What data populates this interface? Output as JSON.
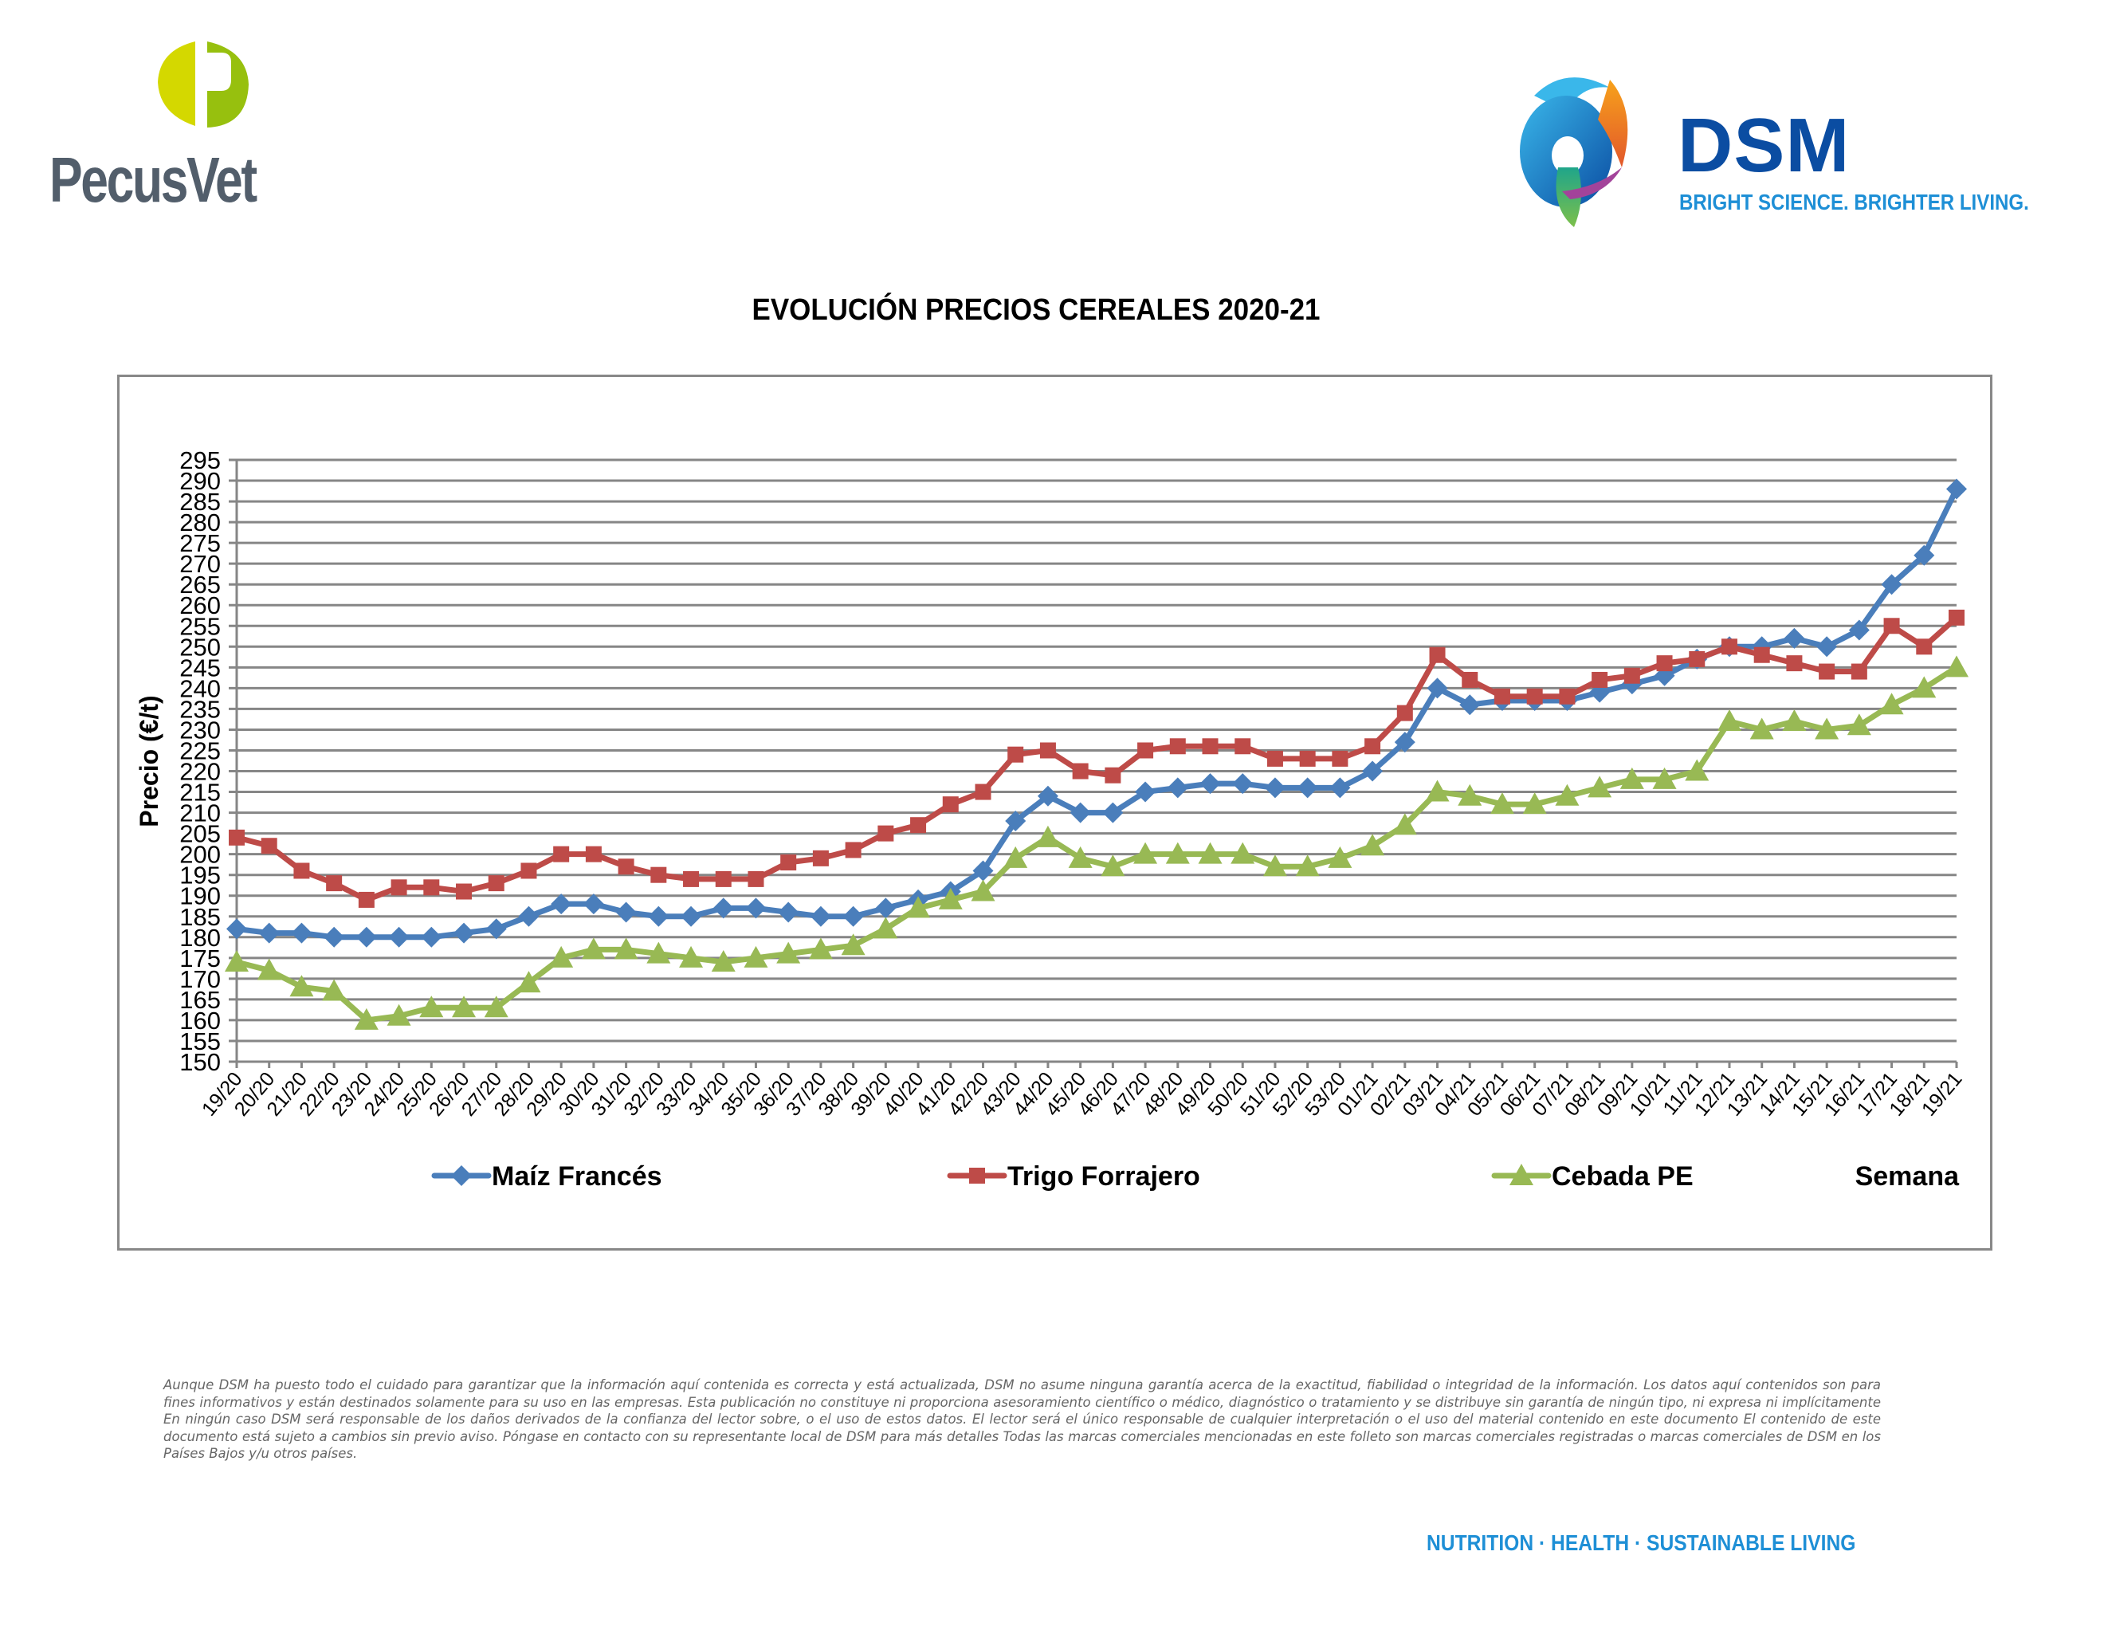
{
  "header": {
    "left_logo": {
      "name": "PecusVet",
      "colors": {
        "left_half": "#d4d800",
        "right_half": "#97c00e",
        "word": "#525e6b"
      }
    },
    "right_logo": {
      "name": "DSM",
      "tagline": "BRIGHT SCIENCE. BRIGHTER LIVING.",
      "colors": {
        "word": "#0b4da2",
        "tagline": "#1e8fd6"
      }
    }
  },
  "footer": {
    "disclaimer": "Aunque DSM ha puesto todo el cuidado para garantizar que la información aquí contenida es correcta y está actualizada, DSM no asume ninguna garantía acerca de la exactitud, fiabilidad o integridad de la información. Los datos aquí contenidos son para fines informativos y están destinados solamente para su uso en las empresas. Esta publicación no constituye ni proporciona asesoramiento científico o médico, diagnóstico o tratamiento y se distribuye sin garantía de ningún tipo, ni expresa ni implícitamente En ningún caso DSM será responsable de los daños derivados de la confianza del lector sobre, o el uso de estos datos. El lector será el único responsable de cualquier interpretación o el uso del material contenido en este documento El contenido de este documento está sujeto a cambios sin previo aviso. Póngase en contacto con su representante local de DSM para más detalles Todas las marcas comerciales mencionadas en este folleto son marcas comerciales registradas o marcas comerciales de DSM en los Países Bajos y/u otros países.",
    "tagline": "NUTRITION  ·  HEALTH  ·  SUSTAINABLE LIVING"
  },
  "chart_data": {
    "type": "line",
    "title": "EVOLUCIÓN PRECIOS CEREALES 2020-21",
    "xlabel": "Semana",
    "ylabel": "Precio (€/t)",
    "ylim": [
      150,
      295
    ],
    "ystep": 5,
    "grid": true,
    "legend_position": "bottom",
    "categories": [
      "19/20",
      "20/20",
      "21/20",
      "22/20",
      "23/20",
      "24/20",
      "25/20",
      "26/20",
      "27/20",
      "28/20",
      "29/20",
      "30/20",
      "31/20",
      "32/20",
      "33/20",
      "34/20",
      "35/20",
      "36/20",
      "37/20",
      "38/20",
      "39/20",
      "40/20",
      "41/20",
      "42/20",
      "43/20",
      "44/20",
      "45/20",
      "46/20",
      "47/20",
      "48/20",
      "49/20",
      "50/20",
      "51/20",
      "52/20",
      "53/20",
      "01/21",
      "02/21",
      "03/21",
      "04/21",
      "05/21",
      "06/21",
      "07/21",
      "08/21",
      "09/21",
      "10/21",
      "11/21",
      "12/21",
      "13/21",
      "14/21",
      "15/21",
      "16/21",
      "17/21",
      "18/21",
      "19/21"
    ],
    "series": [
      {
        "name": "Maíz Francés",
        "color": "#4a7ebb",
        "marker": "diamond",
        "values": [
          182,
          181,
          181,
          180,
          180,
          180,
          180,
          181,
          182,
          185,
          188,
          188,
          186,
          185,
          185,
          187,
          187,
          186,
          185,
          185,
          187,
          189,
          191,
          196,
          208,
          214,
          210,
          210,
          215,
          216,
          217,
          217,
          216,
          216,
          216,
          220,
          227,
          240,
          236,
          237,
          237,
          237,
          239,
          241,
          243,
          247,
          250,
          250,
          252,
          250,
          254,
          265,
          272,
          288
        ]
      },
      {
        "name": "Trigo Forrajero",
        "color": "#be4b48",
        "marker": "square",
        "values": [
          204,
          202,
          196,
          193,
          189,
          192,
          192,
          191,
          193,
          196,
          200,
          200,
          197,
          195,
          194,
          194,
          194,
          198,
          199,
          201,
          205,
          207,
          212,
          215,
          224,
          225,
          220,
          219,
          225,
          226,
          226,
          226,
          223,
          223,
          223,
          226,
          234,
          248,
          242,
          238,
          238,
          238,
          242,
          243,
          246,
          247,
          250,
          248,
          246,
          244,
          244,
          255,
          250,
          257
        ]
      },
      {
        "name": "Cebada PE",
        "color": "#98b954",
        "marker": "triangle",
        "values": [
          174,
          172,
          168,
          167,
          160,
          161,
          163,
          163,
          163,
          169,
          175,
          177,
          177,
          176,
          175,
          174,
          175,
          176,
          177,
          178,
          182,
          187,
          189,
          191,
          199,
          204,
          199,
          197,
          200,
          200,
          200,
          200,
          197,
          197,
          199,
          202,
          207,
          215,
          214,
          212,
          212,
          214,
          216,
          218,
          218,
          220,
          232,
          230,
          232,
          230,
          231,
          236,
          240,
          245
        ]
      }
    ],
    "gridline_color": "#868686"
  }
}
